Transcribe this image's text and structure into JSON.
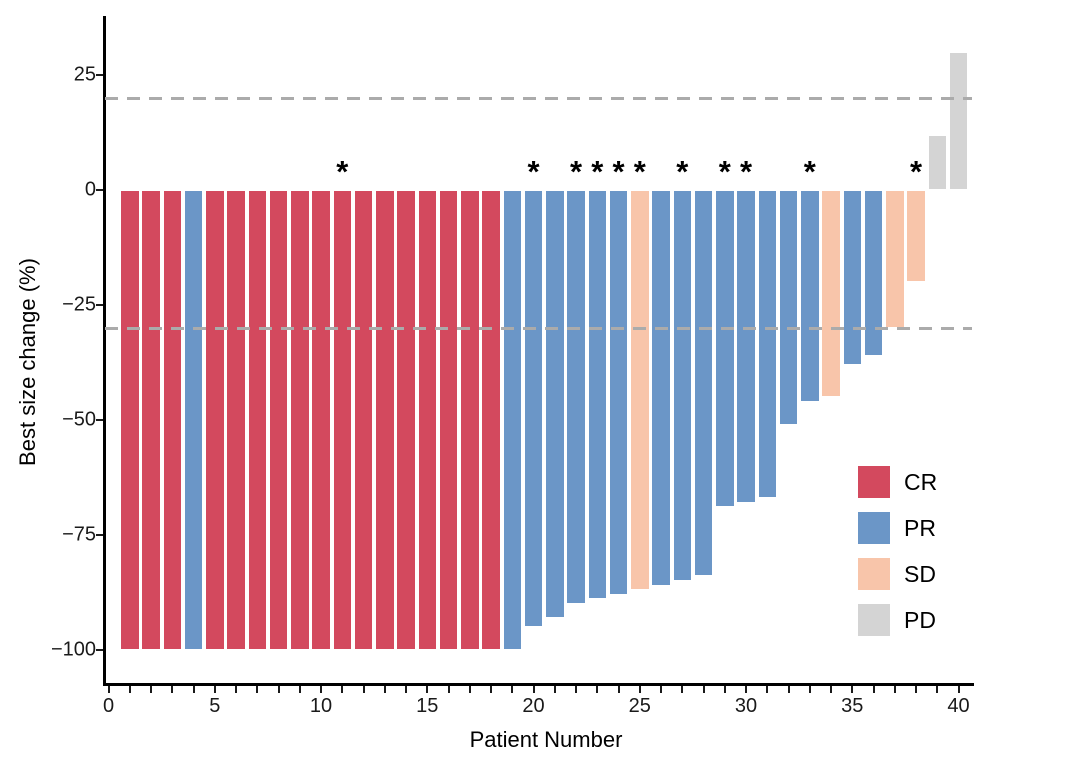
{
  "chart_data": {
    "type": "bar",
    "subtype": "waterfall",
    "title": "",
    "xlabel": "Patient Number",
    "ylabel": "Best size change (%)",
    "xlim": [
      -0.25,
      40.75
    ],
    "ylim": [
      -107,
      37
    ],
    "grid": "off",
    "x_tick_values": [
      0,
      5,
      10,
      15,
      20,
      25,
      30,
      35,
      40
    ],
    "x_tick_labels": [
      "0",
      "5",
      "10",
      "15",
      "20",
      "25",
      "30",
      "35",
      "40"
    ],
    "x_minor_tick_step": 1,
    "y_tick_values": [
      25,
      0,
      -25,
      -50,
      -75,
      -100
    ],
    "y_tick_labels": [
      "25",
      "0",
      "−25",
      "−50",
      "−75",
      "−100"
    ],
    "reference_lines": {
      "values": [
        20,
        -30
      ],
      "style": "dashed",
      "color": "#ABABAB"
    },
    "annotation_symbol": "*",
    "bar_outline_color": "#FFFFFF",
    "legend": {
      "position": "inside-right",
      "entries": [
        {
          "label": "CR",
          "color": "#D3495E"
        },
        {
          "label": "PR",
          "color": "#6B96C7"
        },
        {
          "label": "SD",
          "color": "#F8C5AA"
        },
        {
          "label": "PD",
          "color": "#D4D4D4"
        }
      ]
    },
    "patients": [
      {
        "id": 1,
        "value": -100,
        "response": "CR",
        "star": false
      },
      {
        "id": 2,
        "value": -100,
        "response": "CR",
        "star": false
      },
      {
        "id": 3,
        "value": -100,
        "response": "CR",
        "star": false
      },
      {
        "id": 4,
        "value": -100,
        "response": "PR",
        "star": false
      },
      {
        "id": 5,
        "value": -100,
        "response": "CR",
        "star": false
      },
      {
        "id": 6,
        "value": -100,
        "response": "CR",
        "star": false
      },
      {
        "id": 7,
        "value": -100,
        "response": "CR",
        "star": false
      },
      {
        "id": 8,
        "value": -100,
        "response": "CR",
        "star": false
      },
      {
        "id": 9,
        "value": -100,
        "response": "CR",
        "star": false
      },
      {
        "id": 10,
        "value": -100,
        "response": "CR",
        "star": false
      },
      {
        "id": 11,
        "value": -100,
        "response": "CR",
        "star": true
      },
      {
        "id": 12,
        "value": -100,
        "response": "CR",
        "star": false
      },
      {
        "id": 13,
        "value": -100,
        "response": "CR",
        "star": false
      },
      {
        "id": 14,
        "value": -100,
        "response": "CR",
        "star": false
      },
      {
        "id": 15,
        "value": -100,
        "response": "CR",
        "star": false
      },
      {
        "id": 16,
        "value": -100,
        "response": "CR",
        "star": false
      },
      {
        "id": 17,
        "value": -100,
        "response": "CR",
        "star": false
      },
      {
        "id": 18,
        "value": -100,
        "response": "CR",
        "star": false
      },
      {
        "id": 19,
        "value": -100,
        "response": "PR",
        "star": false
      },
      {
        "id": 20,
        "value": -95,
        "response": "PR",
        "star": true
      },
      {
        "id": 21,
        "value": -93,
        "response": "PR",
        "star": false
      },
      {
        "id": 22,
        "value": -90,
        "response": "PR",
        "star": true
      },
      {
        "id": 23,
        "value": -89,
        "response": "PR",
        "star": true
      },
      {
        "id": 24,
        "value": -88,
        "response": "PR",
        "star": true
      },
      {
        "id": 25,
        "value": -87,
        "response": "SD",
        "star": true
      },
      {
        "id": 26,
        "value": -86,
        "response": "PR",
        "star": false
      },
      {
        "id": 27,
        "value": -85,
        "response": "PR",
        "star": true
      },
      {
        "id": 28,
        "value": -84,
        "response": "PR",
        "star": false
      },
      {
        "id": 29,
        "value": -69,
        "response": "PR",
        "star": true
      },
      {
        "id": 30,
        "value": -68,
        "response": "PR",
        "star": true
      },
      {
        "id": 31,
        "value": -67,
        "response": "PR",
        "star": false
      },
      {
        "id": 32,
        "value": -51,
        "response": "PR",
        "star": false
      },
      {
        "id": 33,
        "value": -46,
        "response": "PR",
        "star": true
      },
      {
        "id": 34,
        "value": -45,
        "response": "SD",
        "star": false
      },
      {
        "id": 35,
        "value": -38,
        "response": "PR",
        "star": false
      },
      {
        "id": 36,
        "value": -36,
        "response": "PR",
        "star": false
      },
      {
        "id": 37,
        "value": -30,
        "response": "SD",
        "star": false
      },
      {
        "id": 38,
        "value": -20,
        "response": "SD",
        "star": true
      },
      {
        "id": 39,
        "value": 12,
        "response": "PD",
        "star": false
      },
      {
        "id": 40,
        "value": 30,
        "response": "PD",
        "star": false
      }
    ]
  }
}
